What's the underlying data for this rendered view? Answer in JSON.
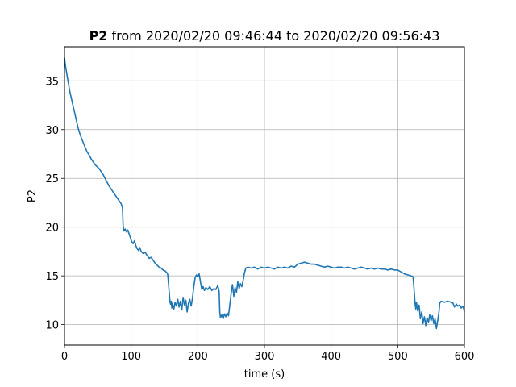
{
  "chart_data": {
    "type": "line",
    "title": {
      "bold": "P2",
      "rest": " from 2020/02/20 09:46:44 to 2020/02/20 09:56:43"
    },
    "xlabel": "time (s)",
    "ylabel": "P2",
    "xlim": [
      0,
      600
    ],
    "ylim": [
      7.9,
      38.5
    ],
    "xticks": [
      0,
      100,
      200,
      300,
      400,
      500,
      600
    ],
    "yticks": [
      10,
      15,
      20,
      25,
      30,
      35
    ],
    "grid": true,
    "series": [
      {
        "color": "#1f77b4",
        "points": [
          [
            0,
            37.4
          ],
          [
            1,
            36.8
          ],
          [
            2,
            36.3
          ],
          [
            3,
            35.9
          ],
          [
            4,
            35.5
          ],
          [
            5,
            35.1
          ],
          [
            6,
            34.7
          ],
          [
            7,
            34.3
          ],
          [
            8,
            33.9
          ],
          [
            9,
            33.6
          ],
          [
            10,
            33.3
          ],
          [
            11,
            33.0
          ],
          [
            12,
            32.7
          ],
          [
            13,
            32.4
          ],
          [
            14,
            32.1
          ],
          [
            15,
            31.8
          ],
          [
            16,
            31.5
          ],
          [
            17,
            31.2
          ],
          [
            18,
            30.9
          ],
          [
            19,
            30.6
          ],
          [
            20,
            30.3
          ],
          [
            22,
            29.8
          ],
          [
            25,
            29.2
          ],
          [
            28,
            28.7
          ],
          [
            31,
            28.2
          ],
          [
            34,
            27.7
          ],
          [
            37,
            27.4
          ],
          [
            40,
            27.0
          ],
          [
            43,
            26.7
          ],
          [
            46,
            26.4
          ],
          [
            49,
            26.2
          ],
          [
            52,
            26.0
          ],
          [
            55,
            25.7
          ],
          [
            58,
            25.4
          ],
          [
            61,
            25.0
          ],
          [
            64,
            24.6
          ],
          [
            67,
            24.2
          ],
          [
            70,
            23.9
          ],
          [
            73,
            23.6
          ],
          [
            76,
            23.3
          ],
          [
            79,
            23.0
          ],
          [
            82,
            22.7
          ],
          [
            85,
            22.4
          ],
          [
            87,
            22.0
          ],
          [
            88,
            20.2
          ],
          [
            89,
            19.6
          ],
          [
            91,
            19.8
          ],
          [
            93,
            19.5
          ],
          [
            95,
            19.7
          ],
          [
            97,
            19.3
          ],
          [
            99,
            18.9
          ],
          [
            101,
            18.5
          ],
          [
            103,
            18.3
          ],
          [
            105,
            18.6
          ],
          [
            107,
            18.1
          ],
          [
            109,
            17.8
          ],
          [
            111,
            17.6
          ],
          [
            113,
            17.9
          ],
          [
            115,
            17.5
          ],
          [
            118,
            17.3
          ],
          [
            121,
            17.4
          ],
          [
            124,
            17.1
          ],
          [
            127,
            16.8
          ],
          [
            130,
            16.9
          ],
          [
            133,
            16.6
          ],
          [
            136,
            16.3
          ],
          [
            139,
            16.1
          ],
          [
            142,
            15.9
          ],
          [
            145,
            15.8
          ],
          [
            148,
            15.6
          ],
          [
            151,
            15.5
          ],
          [
            154,
            15.3
          ],
          [
            155,
            15.1
          ],
          [
            156,
            14.2
          ],
          [
            157,
            13.4
          ],
          [
            158,
            12.6
          ],
          [
            159,
            12.1
          ],
          [
            160,
            12.4
          ],
          [
            161,
            11.7
          ],
          [
            162,
            12.2
          ],
          [
            164,
            11.6
          ],
          [
            166,
            12.3
          ],
          [
            168,
            11.9
          ],
          [
            170,
            12.6
          ],
          [
            172,
            11.8
          ],
          [
            174,
            12.4
          ],
          [
            176,
            11.5
          ],
          [
            178,
            12.8
          ],
          [
            180,
            12.0
          ],
          [
            182,
            12.5
          ],
          [
            184,
            11.3
          ],
          [
            186,
            12.2
          ],
          [
            188,
            12.6
          ],
          [
            190,
            11.9
          ],
          [
            192,
            12.7
          ],
          [
            194,
            13.9
          ],
          [
            196,
            14.8
          ],
          [
            198,
            15.1
          ],
          [
            200,
            14.9
          ],
          [
            202,
            15.2
          ],
          [
            204,
            14.4
          ],
          [
            206,
            13.6
          ],
          [
            208,
            13.9
          ],
          [
            210,
            13.5
          ],
          [
            212,
            13.8
          ],
          [
            215,
            13.6
          ],
          [
            218,
            13.9
          ],
          [
            221,
            13.5
          ],
          [
            224,
            13.7
          ],
          [
            227,
            13.6
          ],
          [
            230,
            14.0
          ],
          [
            232,
            13.4
          ],
          [
            233,
            11.3
          ],
          [
            234,
            10.7
          ],
          [
            236,
            11.0
          ],
          [
            238,
            10.6
          ],
          [
            240,
            11.1
          ],
          [
            242,
            10.8
          ],
          [
            244,
            11.2
          ],
          [
            246,
            10.9
          ],
          [
            248,
            12.0
          ],
          [
            250,
            13.2
          ],
          [
            252,
            14.1
          ],
          [
            254,
            12.9
          ],
          [
            256,
            13.8
          ],
          [
            258,
            13.3
          ],
          [
            260,
            14.4
          ],
          [
            262,
            13.7
          ],
          [
            264,
            14.2
          ],
          [
            266,
            13.9
          ],
          [
            268,
            14.5
          ],
          [
            270,
            15.3
          ],
          [
            272,
            15.8
          ],
          [
            275,
            15.9
          ],
          [
            280,
            15.8
          ],
          [
            285,
            15.9
          ],
          [
            290,
            15.7
          ],
          [
            295,
            15.9
          ],
          [
            300,
            15.8
          ],
          [
            305,
            15.9
          ],
          [
            310,
            15.8
          ],
          [
            315,
            15.7
          ],
          [
            320,
            15.9
          ],
          [
            325,
            15.8
          ],
          [
            330,
            15.9
          ],
          [
            335,
            15.8
          ],
          [
            340,
            16.0
          ],
          [
            345,
            15.9
          ],
          [
            350,
            16.2
          ],
          [
            355,
            16.3
          ],
          [
            360,
            16.4
          ],
          [
            365,
            16.3
          ],
          [
            370,
            16.2
          ],
          [
            375,
            16.2
          ],
          [
            380,
            16.1
          ],
          [
            385,
            16.0
          ],
          [
            390,
            15.9
          ],
          [
            395,
            16.0
          ],
          [
            400,
            15.9
          ],
          [
            405,
            15.8
          ],
          [
            410,
            15.9
          ],
          [
            415,
            15.9
          ],
          [
            420,
            15.8
          ],
          [
            425,
            15.9
          ],
          [
            430,
            15.8
          ],
          [
            435,
            15.7
          ],
          [
            440,
            15.8
          ],
          [
            445,
            15.9
          ],
          [
            450,
            15.8
          ],
          [
            455,
            15.7
          ],
          [
            460,
            15.8
          ],
          [
            465,
            15.7
          ],
          [
            470,
            15.8
          ],
          [
            475,
            15.7
          ],
          [
            480,
            15.7
          ],
          [
            485,
            15.6
          ],
          [
            490,
            15.7
          ],
          [
            495,
            15.6
          ],
          [
            500,
            15.6
          ],
          [
            505,
            15.4
          ],
          [
            510,
            15.2
          ],
          [
            515,
            15.1
          ],
          [
            520,
            15.0
          ],
          [
            523,
            14.9
          ],
          [
            524,
            14.0
          ],
          [
            525,
            13.1
          ],
          [
            526,
            12.2
          ],
          [
            527,
            11.6
          ],
          [
            528,
            12.3
          ],
          [
            530,
            11.4
          ],
          [
            532,
            12.0
          ],
          [
            534,
            10.6
          ],
          [
            536,
            11.3
          ],
          [
            538,
            10.1
          ],
          [
            540,
            10.8
          ],
          [
            542,
            9.9
          ],
          [
            544,
            10.7
          ],
          [
            546,
            10.2
          ],
          [
            548,
            11.0
          ],
          [
            550,
            10.4
          ],
          [
            552,
            10.9
          ],
          [
            554,
            10.1
          ],
          [
            556,
            10.6
          ],
          [
            558,
            9.6
          ],
          [
            560,
            10.4
          ],
          [
            562,
            11.4
          ],
          [
            563,
            12.2
          ],
          [
            565,
            12.4
          ],
          [
            570,
            12.3
          ],
          [
            575,
            12.4
          ],
          [
            580,
            12.3
          ],
          [
            583,
            12.2
          ],
          [
            585,
            11.8
          ],
          [
            588,
            12.1
          ],
          [
            590,
            11.9
          ],
          [
            593,
            12.0
          ],
          [
            595,
            11.7
          ],
          [
            598,
            11.9
          ],
          [
            600,
            11.3
          ]
        ]
      }
    ]
  }
}
